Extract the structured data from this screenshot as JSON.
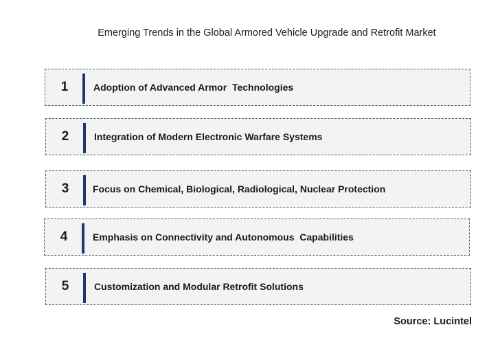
{
  "title": "Emerging Trends in the Global Armored Vehicle Upgrade and Retrofit Market",
  "trends": [
    {
      "number": "1",
      "label": "Adoption of Advanced Armor  Technologies"
    },
    {
      "number": "2",
      "label": "Integration of Modern Electronic Warfare Systems"
    },
    {
      "number": "3",
      "label": "Focus on Chemical, Biological, Radiological, Nuclear Protection"
    },
    {
      "number": "4",
      "label": "Emphasis on Connectivity and Autonomous  Capabilities"
    },
    {
      "number": "5",
      "label": "Customization and Modular Retrofit Solutions"
    }
  ],
  "source": "Source: Lucintel",
  "colors": {
    "box_fill": "#f3f3f3",
    "box_border": "#3c5a8a",
    "accent_bar": "#1f3a68"
  }
}
